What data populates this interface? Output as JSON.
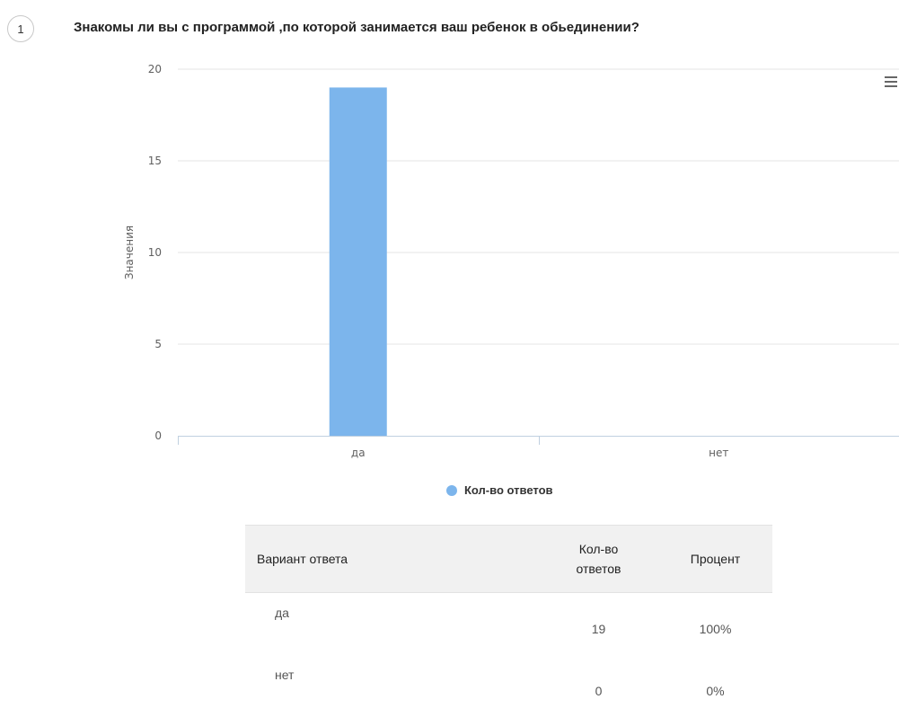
{
  "question": {
    "number": "1",
    "text": "Знакомы ли вы с программой ,по которой занимается ваш ребенок в обьединении?"
  },
  "chart_data": {
    "type": "bar",
    "categories": [
      "да",
      "нет"
    ],
    "series": [
      {
        "name": "Кол-во ответов",
        "values": [
          19,
          0
        ],
        "color": "#7cb5ec"
      }
    ],
    "ylabel": "Значения",
    "ylim": [
      0,
      20
    ],
    "yticks": [
      0,
      5,
      10,
      15,
      20
    ],
    "grid": true,
    "legend_position": "bottom-center"
  },
  "table": {
    "headers": [
      "Вариант ответа",
      "Кол-во ответов",
      "Процент"
    ],
    "rows": [
      {
        "option": "да",
        "count": "19",
        "percent": "100%"
      },
      {
        "option": "нет",
        "count": "0",
        "percent": "0%"
      }
    ]
  },
  "colors": {
    "bar": "#7cb5ec",
    "grid": "#e6e6e6",
    "axis": "#c0d0e0",
    "tick_label": "#606060"
  },
  "icons": {
    "chart_menu": "hamburger-menu-icon"
  }
}
